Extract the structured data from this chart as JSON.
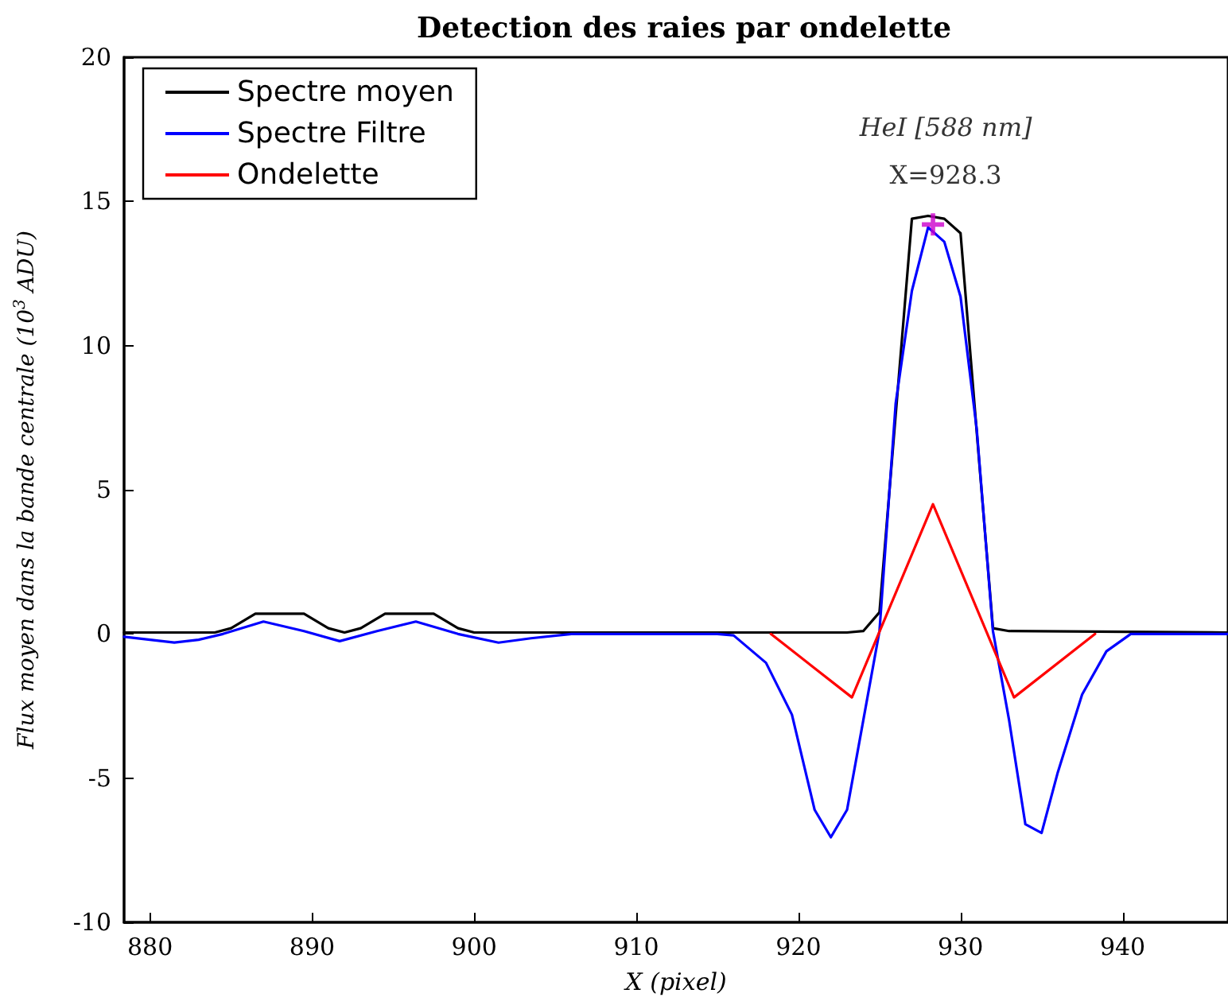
{
  "chart_data": {
    "type": "line",
    "title": "Detection des raies par ondelette",
    "xlabel": "X (pixel)",
    "ylabel": "Flux moyen dans la bande centrale (10$^{3}$ ADU)",
    "xlim": [
      878.4,
      946.5
    ],
    "xticks": [
      880,
      890,
      900,
      910,
      920,
      930,
      940
    ],
    "ylim": [
      -10,
      20
    ],
    "yticks": [
      -10,
      -5,
      0,
      5,
      10,
      15,
      20
    ],
    "grid": false,
    "legend": "top left",
    "marker": "none",
    "line_style": "solid",
    "series": [
      {
        "name": "Spectre moyen",
        "color": "#000000",
        "x": [
          878.4,
          884,
          885,
          886.5,
          889.5,
          891,
          892,
          893,
          894.5,
          897.5,
          899,
          900,
          923,
          924,
          925,
          926,
          927,
          928,
          929,
          930,
          931,
          932,
          933,
          946.5
        ],
        "values": [
          0.05,
          0.05,
          0.2,
          0.7,
          0.7,
          0.2,
          0.05,
          0.2,
          0.7,
          0.7,
          0.2,
          0.05,
          0.05,
          0.1,
          0.75,
          7.6,
          14.4,
          14.5,
          14.4,
          13.9,
          7,
          0.2,
          0.1,
          0.05
        ]
      },
      {
        "name": "Spectre Filtre",
        "color": "#0000ff",
        "x": [
          878.4,
          880,
          881.5,
          883,
          884.5,
          887,
          889.5,
          891.7,
          894,
          896.4,
          899,
          901.5,
          903.5,
          906,
          915,
          916,
          918,
          919.6,
          921,
          922,
          923,
          924,
          925,
          926,
          927,
          928,
          929,
          930,
          931,
          932,
          933,
          934,
          935,
          936,
          937.5,
          939,
          940.5,
          946.5
        ],
        "values": [
          -0.1,
          -0.2,
          -0.3,
          -0.2,
          0,
          0.43,
          0.1,
          -0.25,
          0.1,
          0.43,
          0,
          -0.3,
          -0.15,
          0,
          0,
          -0.05,
          -1.0,
          -2.8,
          -6.1,
          -7.05,
          -6.1,
          -3.0,
          0.1,
          8.0,
          11.9,
          14.1,
          13.6,
          11.7,
          7.1,
          0.1,
          -3.0,
          -6.6,
          -6.9,
          -4.8,
          -2.1,
          -0.6,
          0,
          0
        ]
      },
      {
        "name": "Ondelette",
        "color": "#ff0000",
        "x": [
          918.3,
          923.3,
          928.3,
          933.3,
          938.3
        ],
        "values": [
          0,
          -2.2,
          4.5,
          -2.2,
          0
        ]
      },
      {
        "type": "scatter",
        "marker": "cross",
        "color": "#cc00cc",
        "x": [
          928.3
        ],
        "values": [
          14.2
        ]
      }
    ],
    "annotations": [
      "HeI [588 nm]",
      {
        "text": "X=928.3",
        "x": 928.3,
        "y": 14.2
      }
    ]
  }
}
